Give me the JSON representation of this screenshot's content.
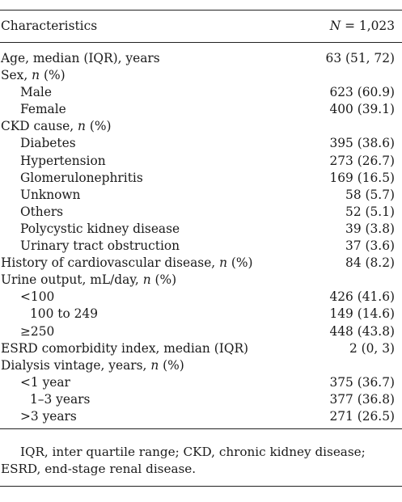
{
  "table": {
    "header": {
      "characteristics": "Characteristics",
      "n_label": "N",
      "n_value": " = 1,023"
    },
    "rows": [
      {
        "label_pre": "Age, median (IQR), years",
        "label_em": "",
        "label_post": "",
        "value": "63 (51, 72)",
        "indent": 0
      },
      {
        "label_pre": "Sex, ",
        "label_em": "n",
        "label_post": " (%)",
        "value": "",
        "indent": 0
      },
      {
        "label_pre": "Male",
        "label_em": "",
        "label_post": "",
        "value": "623 (60.9)",
        "indent": 1
      },
      {
        "label_pre": "Female",
        "label_em": "",
        "label_post": "",
        "value": "400 (39.1)",
        "indent": 1
      },
      {
        "label_pre": "CKD cause, ",
        "label_em": "n",
        "label_post": " (%)",
        "value": "",
        "indent": 0
      },
      {
        "label_pre": "Diabetes",
        "label_em": "",
        "label_post": "",
        "value": "395 (38.6)",
        "indent": 1
      },
      {
        "label_pre": "Hypertension",
        "label_em": "",
        "label_post": "",
        "value": "273 (26.7)",
        "indent": 1
      },
      {
        "label_pre": "Glomerulonephritis",
        "label_em": "",
        "label_post": "",
        "value": "169 (16.5)",
        "indent": 1
      },
      {
        "label_pre": "Unknown",
        "label_em": "",
        "label_post": "",
        "value": "58 (5.7)",
        "indent": 1
      },
      {
        "label_pre": "Others",
        "label_em": "",
        "label_post": "",
        "value": "52 (5.1)",
        "indent": 1
      },
      {
        "label_pre": "Polycystic kidney disease",
        "label_em": "",
        "label_post": "",
        "value": "39 (3.8)",
        "indent": 1
      },
      {
        "label_pre": "Urinary tract obstruction",
        "label_em": "",
        "label_post": "",
        "value": "37 (3.6)",
        "indent": 1
      },
      {
        "label_pre": "History of cardiovascular disease, ",
        "label_em": "n",
        "label_post": " (%)",
        "value": "84 (8.2)",
        "indent": 0
      },
      {
        "label_pre": "Urine output, mL/day, ",
        "label_em": "n",
        "label_post": " (%)",
        "value": "",
        "indent": 0
      },
      {
        "label_pre": "<100",
        "label_em": "",
        "label_post": "",
        "value": "426 (41.6)",
        "indent": 1
      },
      {
        "label_pre": "100 to 249",
        "label_em": "",
        "label_post": "",
        "value": "149 (14.6)",
        "indent": 2
      },
      {
        "label_pre": "≥250",
        "label_em": "",
        "label_post": "",
        "value": "448 (43.8)",
        "indent": 1
      },
      {
        "label_pre": "ESRD comorbidity index, median (IQR)",
        "label_em": "",
        "label_post": "",
        "value": "2 (0, 3)",
        "indent": 0
      },
      {
        "label_pre": "Dialysis vintage, years, ",
        "label_em": "n",
        "label_post": " (%)",
        "value": "",
        "indent": 0
      },
      {
        "label_pre": "<1 year",
        "label_em": "",
        "label_post": "",
        "value": "375 (36.7)",
        "indent": 1
      },
      {
        "label_pre": "1–3 years",
        "label_em": "",
        "label_post": "",
        "value": "377 (36.8)",
        "indent": 2
      },
      {
        "label_pre": ">3 years",
        "label_em": "",
        "label_post": "",
        "value": "271 (26.5)",
        "indent": 1
      }
    ]
  },
  "footnote": "IQR, inter quartile range; CKD, chronic kidney disease; ESRD, end-stage renal disease."
}
